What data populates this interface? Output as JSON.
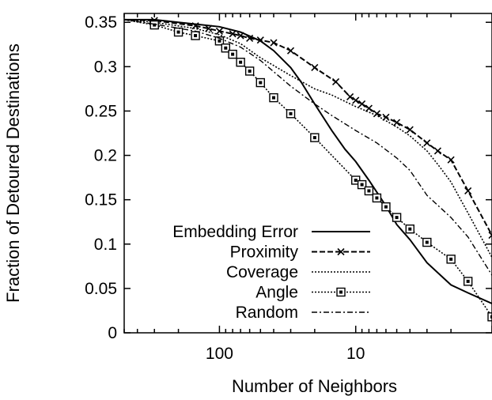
{
  "chart_data": {
    "type": "line",
    "title": "",
    "xlabel": "Number of Neighbors",
    "ylabel": "Fraction of Detoured Destinations",
    "x_scale": "log",
    "x_reversed": true,
    "xlim": [
      1,
      500
    ],
    "ylim": [
      0,
      0.36
    ],
    "xticks": [
      100,
      10,
      1
    ],
    "xtick_labels": [
      "100",
      "10",
      ""
    ],
    "yticks": [
      0,
      0.05,
      0.1,
      0.15,
      0.2,
      0.25,
      0.3,
      0.35
    ],
    "ytick_labels": [
      "0",
      "0.05",
      "0.1",
      "0.15",
      "0.2",
      "0.25",
      "0.3",
      "0.35"
    ],
    "grid": false,
    "legend_position": "bottom-left",
    "series": [
      {
        "name": "Embedding Error",
        "style": "solid",
        "marker": "none",
        "points": [
          [
            500,
            0.353
          ],
          [
            300,
            0.353
          ],
          [
            200,
            0.35
          ],
          [
            100,
            0.345
          ],
          [
            70,
            0.339
          ],
          [
            50,
            0.329
          ],
          [
            40,
            0.318
          ],
          [
            30,
            0.299
          ],
          [
            25,
            0.282
          ],
          [
            20,
            0.258
          ],
          [
            15,
            0.228
          ],
          [
            12,
            0.207
          ],
          [
            10,
            0.193
          ],
          [
            8,
            0.172
          ],
          [
            6,
            0.143
          ],
          [
            5,
            0.122
          ],
          [
            4,
            0.105
          ],
          [
            3,
            0.079
          ],
          [
            2,
            0.054
          ],
          [
            1.5,
            0.045
          ],
          [
            1,
            0.033
          ]
        ]
      },
      {
        "name": "Proximity",
        "style": "dashed",
        "marker": "x",
        "points": [
          [
            500,
            0.353
          ],
          [
            300,
            0.352
          ],
          [
            150,
            0.346
          ],
          [
            120,
            0.343
          ],
          [
            100,
            0.34
          ],
          [
            80,
            0.337
          ],
          [
            70,
            0.335
          ],
          [
            60,
            0.332
          ],
          [
            50,
            0.33
          ],
          [
            40,
            0.327
          ],
          [
            30,
            0.318
          ],
          [
            20,
            0.299
          ],
          [
            14,
            0.283
          ],
          [
            11,
            0.266
          ],
          [
            10,
            0.262
          ],
          [
            9,
            0.258
          ],
          [
            8,
            0.253
          ],
          [
            7,
            0.247
          ],
          [
            6,
            0.243
          ],
          [
            5,
            0.237
          ],
          [
            4,
            0.229
          ],
          [
            3,
            0.214
          ],
          [
            2.5,
            0.205
          ],
          [
            2,
            0.195
          ],
          [
            1.5,
            0.16
          ],
          [
            1,
            0.11
          ]
        ]
      },
      {
        "name": "Coverage",
        "style": "dotted",
        "marker": "none",
        "points": [
          [
            500,
            0.353
          ],
          [
            300,
            0.35
          ],
          [
            150,
            0.343
          ],
          [
            100,
            0.336
          ],
          [
            70,
            0.326
          ],
          [
            50,
            0.31
          ],
          [
            30,
            0.29
          ],
          [
            20,
            0.275
          ],
          [
            15,
            0.268
          ],
          [
            10,
            0.255
          ],
          [
            7,
            0.245
          ],
          [
            5,
            0.232
          ],
          [
            4,
            0.222
          ],
          [
            3,
            0.205
          ],
          [
            2.5,
            0.19
          ],
          [
            2,
            0.17
          ],
          [
            1.5,
            0.135
          ],
          [
            1,
            0.085
          ]
        ]
      },
      {
        "name": "Angle",
        "style": "dotted",
        "marker": "square",
        "points": [
          [
            500,
            0.353
          ],
          [
            300,
            0.347
          ],
          [
            200,
            0.339
          ],
          [
            150,
            0.335
          ],
          [
            100,
            0.329
          ],
          [
            90,
            0.321
          ],
          [
            80,
            0.314
          ],
          [
            70,
            0.305
          ],
          [
            60,
            0.295
          ],
          [
            50,
            0.282
          ],
          [
            40,
            0.265
          ],
          [
            30,
            0.247
          ],
          [
            20,
            0.22
          ],
          [
            10,
            0.172
          ],
          [
            9,
            0.167
          ],
          [
            8,
            0.16
          ],
          [
            7,
            0.152
          ],
          [
            6,
            0.142
          ],
          [
            5,
            0.13
          ],
          [
            4,
            0.117
          ],
          [
            3,
            0.102
          ],
          [
            2,
            0.083
          ],
          [
            1.5,
            0.058
          ],
          [
            1,
            0.018
          ]
        ]
      },
      {
        "name": "Random",
        "style": "dash-dot",
        "marker": "none",
        "points": [
          [
            500,
            0.353
          ],
          [
            300,
            0.348
          ],
          [
            150,
            0.34
          ],
          [
            100,
            0.332
          ],
          [
            70,
            0.322
          ],
          [
            50,
            0.307
          ],
          [
            30,
            0.278
          ],
          [
            20,
            0.258
          ],
          [
            15,
            0.245
          ],
          [
            10,
            0.228
          ],
          [
            7,
            0.214
          ],
          [
            5,
            0.197
          ],
          [
            4,
            0.183
          ],
          [
            3,
            0.155
          ],
          [
            2,
            0.13
          ],
          [
            1.5,
            0.108
          ],
          [
            1,
            0.065
          ]
        ]
      }
    ]
  }
}
